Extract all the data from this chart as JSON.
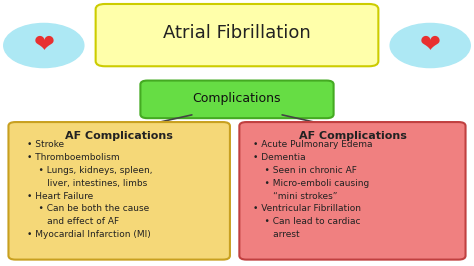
{
  "title": "Atrial Fibrillation",
  "title_box_color": "#FFFFAA",
  "title_border_color": "#CCCC00",
  "complications_label": "Complications",
  "complications_box_color": "#66DD44",
  "complications_border_color": "#44AA22",
  "left_box_title": "AF Complications",
  "left_box_color": "#F5D878",
  "left_box_border_color": "#C8A020",
  "left_box_items": [
    "• Stroke",
    "• Thromboembolism",
    "    • Lungs, kidneys, spleen,\n       liver, intestines, limbs",
    "• Heart Failure",
    "    • Can be both the cause\n       and effect of AF",
    "• Myocardial Infarction (MI)"
  ],
  "right_box_title": "AF Complications",
  "right_box_color": "#F08080",
  "right_box_border_color": "#C04040",
  "right_box_items": [
    "• Acute Pulmonary Edema",
    "• Dementia",
    "    • Seen in chronic AF",
    "    • Micro-emboli causing\n       “mini strokes”",
    "• Ventricular Fibrillation",
    "    • Can lead to cardiac\n       arrest"
  ],
  "background_color": "#FFFFFF",
  "text_color": "#222222",
  "title_fontsize": 13,
  "header_fontsize": 8,
  "body_fontsize": 6.5
}
